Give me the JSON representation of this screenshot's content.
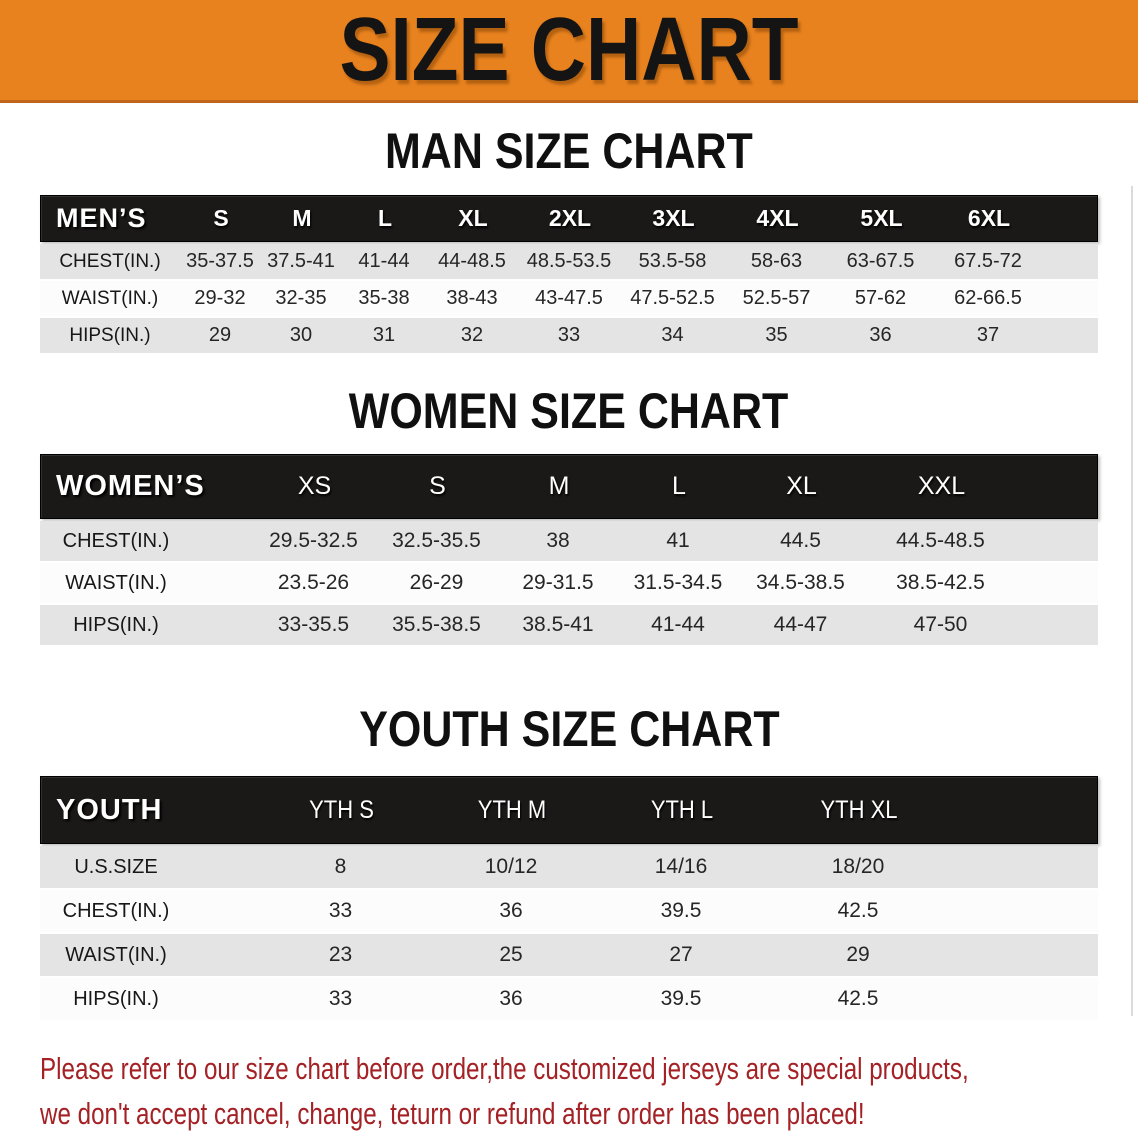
{
  "banner": {
    "title": "SIZE CHART"
  },
  "colors": {
    "banner-bg": "#E8821E",
    "banner-edge": "#C0661A",
    "header-bg": "#1B1918",
    "row-gray": "#E4E4E4",
    "row-white": "#FCFCFC",
    "text-dark": "#262626",
    "footer-red": "#A42125"
  },
  "sections": [
    {
      "title": "MAN SIZE CHART",
      "table": {
        "label": "MEN’S",
        "columns": [
          "S",
          "M",
          "L",
          "XL",
          "2XL",
          "3XL",
          "4XL",
          "5XL",
          "6XL"
        ],
        "rows": [
          {
            "label": "CHEST(IN.)",
            "values": [
              "35-37.5",
              "37.5-41",
              "41-44",
              "44-48.5",
              "48.5-53.5",
              "53.5-58",
              "58-63",
              "63-67.5",
              "67.5-72"
            ]
          },
          {
            "label": "WAIST(IN.)",
            "values": [
              "29-32",
              "32-35",
              "35-38",
              "38-43",
              "43-47.5",
              "47.5-52.5",
              "52.5-57",
              "57-62",
              "62-66.5"
            ]
          },
          {
            "label": "HIPS(IN.)",
            "values": [
              "29",
              "30",
              "31",
              "32",
              "33",
              "34",
              "35",
              "36",
              "37"
            ]
          }
        ]
      }
    },
    {
      "title": "WOMEN SIZE CHART",
      "table": {
        "label": "WOMEN’S",
        "columns": [
          "XS",
          "S",
          "M",
          "L",
          "XL",
          "XXL"
        ],
        "rows": [
          {
            "label": "CHEST(IN.)",
            "values": [
              "29.5-32.5",
              "32.5-35.5",
              "38",
              "41",
              "44.5",
              "44.5-48.5"
            ]
          },
          {
            "label": "WAIST(IN.)",
            "values": [
              "23.5-26",
              "26-29",
              "29-31.5",
              "31.5-34.5",
              "34.5-38.5",
              "38.5-42.5"
            ]
          },
          {
            "label": "HIPS(IN.)",
            "values": [
              "33-35.5",
              "35.5-38.5",
              "38.5-41",
              "41-44",
              "44-47",
              "47-50"
            ]
          }
        ]
      }
    },
    {
      "title": "YOUTH SIZE CHART",
      "table": {
        "label": "YOUTH",
        "columns": [
          "YTH S",
          "YTH M",
          "YTH L",
          "YTH XL"
        ],
        "rows": [
          {
            "label": "U.S.SIZE",
            "values": [
              "8",
              "10/12",
              "14/16",
              "18/20"
            ]
          },
          {
            "label": "CHEST(IN.)",
            "values": [
              "33",
              "36",
              "39.5",
              "42.5"
            ]
          },
          {
            "label": "WAIST(IN.)",
            "values": [
              "23",
              "25",
              "27",
              "29"
            ]
          },
          {
            "label": "HIPS(IN.)",
            "values": [
              "33",
              "36",
              "39.5",
              "42.5"
            ]
          }
        ]
      }
    }
  ],
  "footer": {
    "line1": "Please refer to our size chart before order,the customized jerseys are special products,",
    "line2": "we don't accept cancel, change, teturn or refund after order has been placed!"
  }
}
